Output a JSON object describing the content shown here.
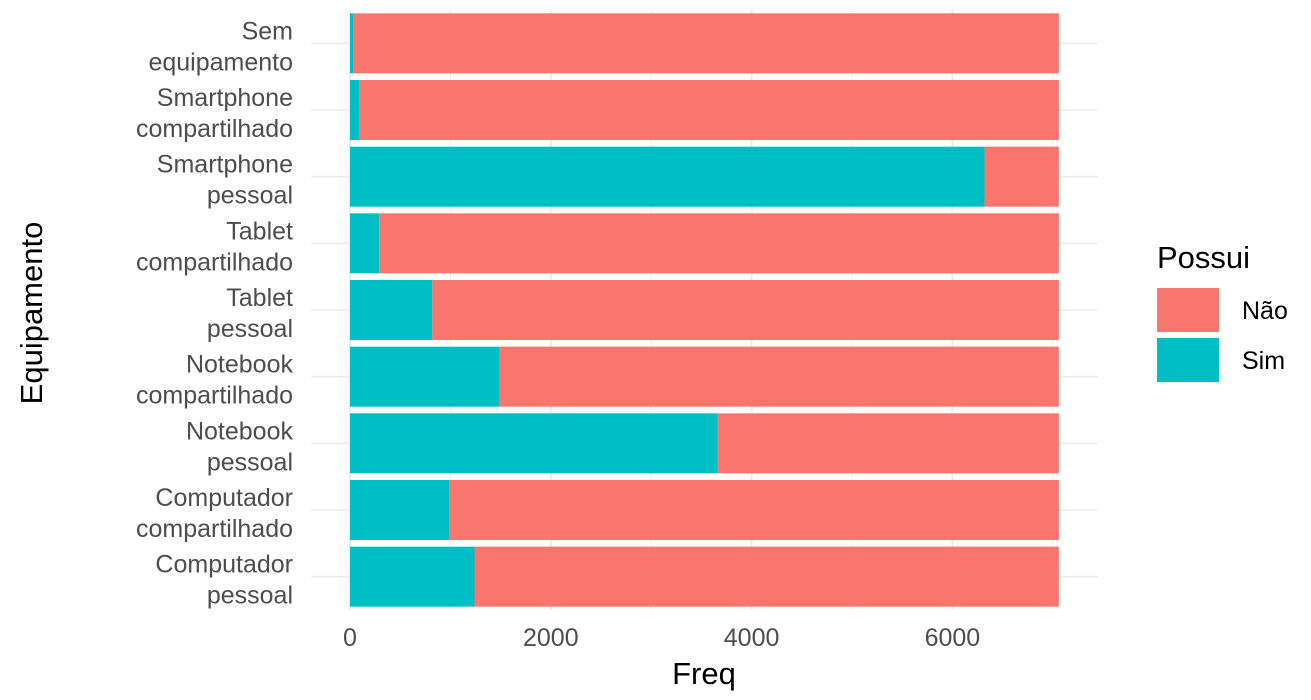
{
  "chart_data": {
    "type": "bar",
    "orientation": "horizontal",
    "stacked": true,
    "categories": [
      "Sem\nequipamento",
      "Smartphone\ncompartilhado",
      "Smartphone\npessoal",
      "Tablet\ncompartilhado",
      "Tablet\npessoal",
      "Notebook\ncompartilhado",
      "Notebook\npessoal",
      "Computador\ncompartilhado",
      "Computador\npessoal"
    ],
    "series": [
      {
        "name": "Sim",
        "color": "#00BFC4",
        "values": [
          30,
          90,
          6320,
          290,
          820,
          1490,
          3660,
          990,
          1240
        ]
      },
      {
        "name": "Não",
        "color": "#F8766D",
        "values": [
          7030,
          6970,
          740,
          6770,
          6240,
          5570,
          3400,
          6070,
          5820
        ]
      }
    ],
    "xlabel": "Freq",
    "ylabel": "Equipamento",
    "xlim": [
      0,
      7060
    ],
    "xticks": [
      0,
      2000,
      4000,
      6000
    ],
    "legend": {
      "title": "Possui",
      "position": "right",
      "entries": [
        {
          "label": "Não",
          "color": "#F8766D"
        },
        {
          "label": "Sim",
          "color": "#00BFC4"
        }
      ]
    },
    "grid": true,
    "grid_color": "#ebebeb",
    "background": "#ffffff"
  }
}
